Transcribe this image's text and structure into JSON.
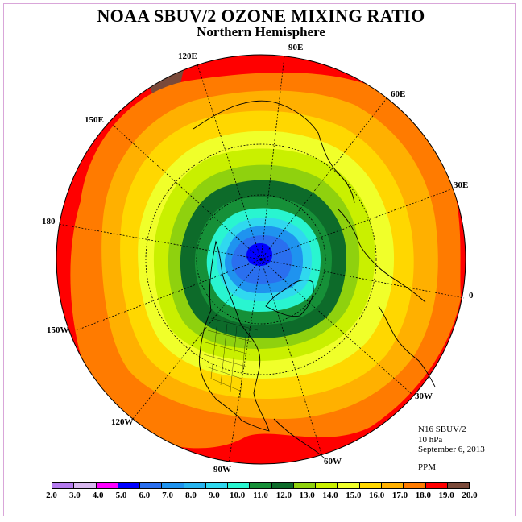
{
  "header": {
    "title": "NOAA SBUV/2 OZONE MIXING RATIO",
    "subtitle": "Northern Hemisphere"
  },
  "map": {
    "projection": "polar stereographic, north pole centered",
    "longitude_labels": [
      "90E",
      "60E",
      "30E",
      "0",
      "30W",
      "60W",
      "90W",
      "120W",
      "150W",
      "180",
      "150E",
      "120E"
    ],
    "features": [
      "coastlines",
      "US state boundaries",
      "latitude circles",
      "longitude meridians"
    ],
    "min_region": "North Pole (blue, 5.0–6.0 PPM)",
    "max_region": "low latitudes (red, 18.0–19.0 PPM; brown 19.0–20.0 near 120E)"
  },
  "info": {
    "satellite": "N16 SBUV/2",
    "level": "10 hPa",
    "date": "September 6, 2013",
    "units": "PPM"
  },
  "colorbar": {
    "tick_labels": [
      "2.0",
      "3.0",
      "4.0",
      "5.0",
      "6.0",
      "7.0",
      "8.0",
      "9.0",
      "10.0",
      "11.0",
      "12.0",
      "13.0",
      "14.0",
      "15.0",
      "16.0",
      "17.0",
      "18.0",
      "19.0",
      "20.0"
    ],
    "colors": [
      "#b57bef",
      "#d9b8ef",
      "#ff00ff",
      "#0000ff",
      "#2a6fef",
      "#1f93ef",
      "#28b4ef",
      "#30d8ef",
      "#29f5d0",
      "#169038",
      "#0d6b2a",
      "#8fd10e",
      "#c9f000",
      "#f0ff2a",
      "#ffd700",
      "#ffb000",
      "#ff7b00",
      "#ff0000",
      "#7a4a3a"
    ]
  }
}
